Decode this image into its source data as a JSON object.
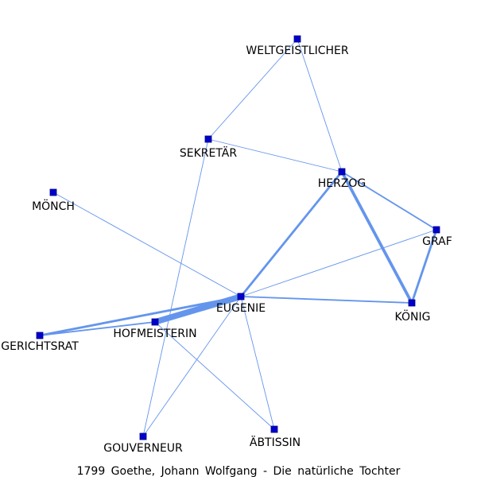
{
  "caption": "1799 Goethe, Johann Wolfgang - Die natürliche Tochter",
  "colors": {
    "edge": "#6495ed",
    "node": "#0000cd",
    "text": "#000000"
  },
  "nodes": [
    {
      "id": "weltgeistlicher",
      "label": "WELTGEISTLICHER"
    },
    {
      "id": "sekretaer",
      "label": "SEKRETÄR"
    },
    {
      "id": "herzog",
      "label": "HERZOG"
    },
    {
      "id": "moench",
      "label": "MÖNCH"
    },
    {
      "id": "graf",
      "label": "GRAF"
    },
    {
      "id": "eugenie",
      "label": "EUGENIE"
    },
    {
      "id": "koenig",
      "label": "KÖNIG"
    },
    {
      "id": "gerichtsrat",
      "label": "GERICHTSRAT"
    },
    {
      "id": "hofmeisterin",
      "label": "HOFMEISTERIN"
    },
    {
      "id": "gouverneur",
      "label": "GOUVERNEUR"
    },
    {
      "id": "aebtissin",
      "label": "ÄBTISSIN"
    }
  ],
  "edges": [
    {
      "source": "weltgeistlicher",
      "target": "sekretaer",
      "weight": 1
    },
    {
      "source": "weltgeistlicher",
      "target": "herzog",
      "weight": 1
    },
    {
      "source": "sekretaer",
      "target": "herzog",
      "weight": 1
    },
    {
      "source": "sekretaer",
      "target": "gouverneur",
      "weight": 1
    },
    {
      "source": "herzog",
      "target": "eugenie",
      "weight": 3
    },
    {
      "source": "herzog",
      "target": "koenig",
      "weight": 4
    },
    {
      "source": "herzog",
      "target": "graf",
      "weight": 2
    },
    {
      "source": "graf",
      "target": "koenig",
      "weight": 3
    },
    {
      "source": "graf",
      "target": "eugenie",
      "weight": 1
    },
    {
      "source": "moench",
      "target": "eugenie",
      "weight": 1
    },
    {
      "source": "eugenie",
      "target": "koenig",
      "weight": 2
    },
    {
      "source": "eugenie",
      "target": "hofmeisterin",
      "weight": 8
    },
    {
      "source": "eugenie",
      "target": "gerichtsrat",
      "weight": 3
    },
    {
      "source": "eugenie",
      "target": "gouverneur",
      "weight": 1
    },
    {
      "source": "eugenie",
      "target": "aebtissin",
      "weight": 1
    },
    {
      "source": "hofmeisterin",
      "target": "gerichtsrat",
      "weight": 2
    },
    {
      "source": "hofmeisterin",
      "target": "aebtissin",
      "weight": 1
    }
  ]
}
